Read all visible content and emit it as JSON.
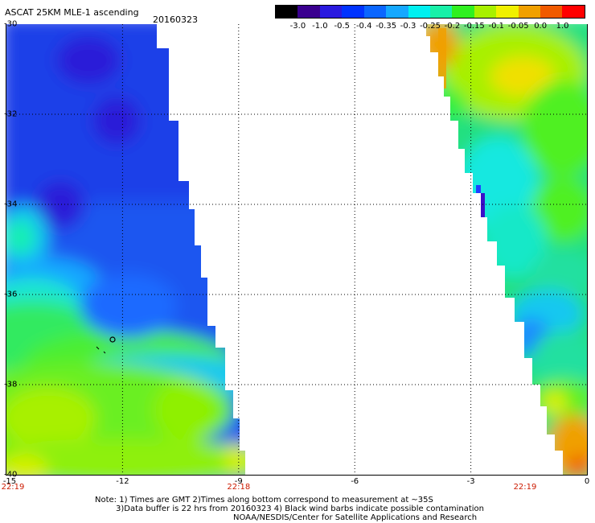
{
  "header": {
    "title": "ASCAT 25KM MLE-1 ascending",
    "date": "20160323"
  },
  "colorbar": {
    "ticks": [
      "-3.0",
      "-1.0",
      "-0.5",
      "-0.4",
      "-0.35",
      "-0.3",
      "-0.25",
      "-0.2",
      "-0.15",
      "-0.1",
      "-0.05",
      "0.0",
      "1.0"
    ],
    "colors": [
      "#000000",
      "#3a008f",
      "#2a1adf",
      "#0033ff",
      "#0a66ff",
      "#15a8ff",
      "#00f0f0",
      "#18f0a8",
      "#30f020",
      "#a8f000",
      "#f0f000",
      "#f0a000",
      "#f05a00",
      "#ff0000"
    ]
  },
  "map": {
    "lat_labels": [
      "-30",
      "-32",
      "-34",
      "-36",
      "-38",
      "-40"
    ],
    "lon_labels": [
      "-15",
      "-12",
      "-9",
      "-6",
      "-3",
      "0"
    ],
    "time_labels": [
      {
        "text": "22:19",
        "lon": -15
      },
      {
        "text": "22:18",
        "lon": -9
      },
      {
        "text": "22:19",
        "lon": -1.6
      }
    ],
    "lat_range": [
      -40,
      -30
    ],
    "lon_range": [
      -15,
      0
    ],
    "grid": true,
    "left_swath_lon_range": [
      -15,
      -8.9
    ],
    "right_swath_lon_range": [
      -4.1,
      0
    ]
  },
  "notes": [
    "Note: 1) Times are GMT 2)Times along bottom correspond to measurement at ~35S",
    "3)Data buffer is 22 hrs from 20160323 4) Black wind barbs indicate possible contamination",
    "NOAA/NESDIS/Center for Satellite Applications and Research"
  ]
}
